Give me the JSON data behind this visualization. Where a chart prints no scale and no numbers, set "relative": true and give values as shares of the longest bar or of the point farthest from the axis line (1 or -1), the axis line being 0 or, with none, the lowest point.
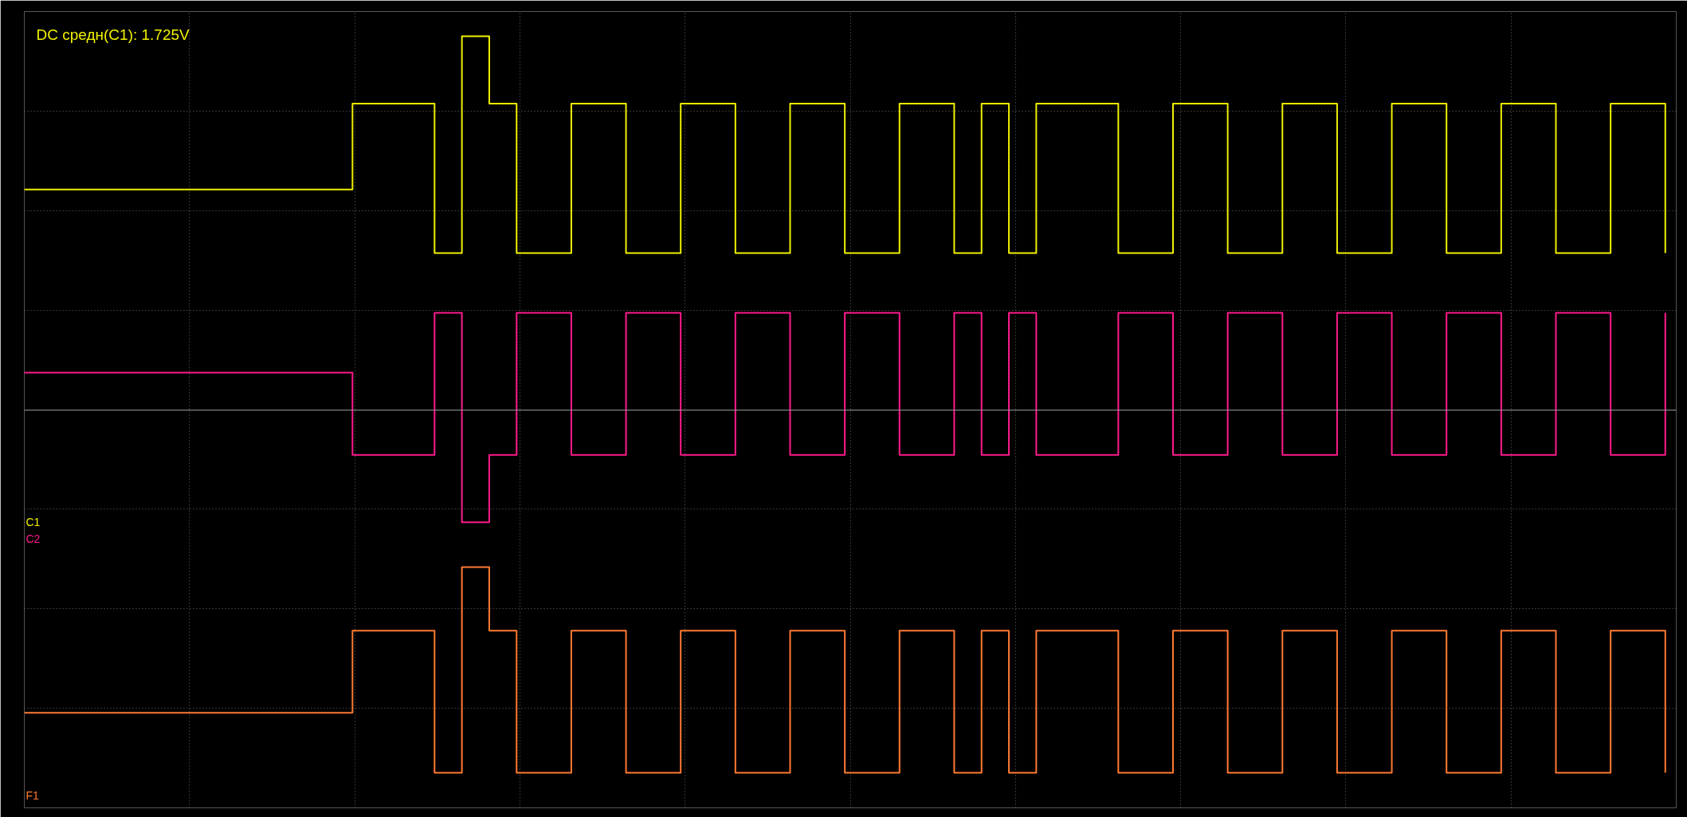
{
  "chart_data": {
    "type": "step",
    "relative": true,
    "grid": true,
    "line_style": "solid",
    "marker": "none",
    "categories": [
      null,
      null,
      null,
      null,
      null,
      null,
      null,
      null,
      null,
      null,
      null,
      null,
      null,
      null,
      null,
      null,
      null,
      null,
      null,
      null,
      null,
      null,
      null,
      null,
      null,
      null,
      null,
      null,
      null,
      null,
      null,
      null,
      null,
      null,
      null,
      null,
      null,
      null,
      null,
      null,
      null,
      null,
      null,
      null,
      null,
      null,
      null,
      null,
      null,
      null,
      null,
      null,
      null,
      null,
      null,
      null,
      null,
      null,
      null,
      null,
      null
    ],
    "annotations": [
      "DC средн(C1): 1.725V"
    ],
    "series": [
      {
        "name": "C1",
        "color": "#f0f000",
        "values": [
          0.59,
          0.59,
          0.59,
          0.59,
          0.59,
          0.59,
          0.59,
          0.59,
          0.59,
          0.59,
          0.59,
          0.59,
          0.82,
          0.82,
          0.82,
          0.42,
          1,
          0.82,
          0.42,
          0.42,
          0.82,
          0.82,
          0.42,
          0.42,
          0.82,
          0.82,
          0.42,
          0.42,
          0.82,
          0.82,
          0.42,
          0.42,
          0.82,
          0.82,
          0.42,
          0.82,
          0.42,
          0.82,
          0.82,
          0.82,
          0.42,
          0.42,
          0.82,
          0.82,
          0.42,
          0.42,
          0.82,
          0.82,
          0.42,
          0.42,
          0.82,
          0.82,
          0.42,
          0.42,
          0.82,
          0.82,
          0.42,
          0.42,
          0.82,
          0.82,
          0.42
        ]
      },
      {
        "name": "C2",
        "color": "#ff1a8c",
        "values": [
          0.1,
          0.1,
          0.1,
          0.1,
          0.1,
          0.1,
          0.1,
          0.1,
          0.1,
          0.1,
          0.1,
          0.1,
          -0.12,
          -0.12,
          -0.12,
          0.26,
          -0.3,
          -0.12,
          0.26,
          0.26,
          -0.12,
          -0.12,
          0.26,
          0.26,
          -0.12,
          -0.12,
          0.26,
          0.26,
          -0.12,
          -0.12,
          0.26,
          0.26,
          -0.12,
          -0.12,
          0.26,
          -0.12,
          0.26,
          -0.12,
          -0.12,
          -0.12,
          0.26,
          0.26,
          -0.12,
          -0.12,
          0.26,
          0.26,
          -0.12,
          -0.12,
          0.26,
          0.26,
          -0.12,
          -0.12,
          0.26,
          0.26,
          -0.12,
          -0.12,
          0.26,
          0.26,
          -0.12,
          -0.12,
          0.26
        ]
      },
      {
        "name": "F1",
        "color": "#ff7a33",
        "values": [
          -0.81,
          -0.81,
          -0.81,
          -0.81,
          -0.81,
          -0.81,
          -0.81,
          -0.81,
          -0.81,
          -0.81,
          -0.81,
          -0.81,
          -0.59,
          -0.59,
          -0.59,
          -0.97,
          -0.42,
          -0.59,
          -0.97,
          -0.97,
          -0.59,
          -0.59,
          -0.97,
          -0.97,
          -0.59,
          -0.59,
          -0.97,
          -0.97,
          -0.59,
          -0.59,
          -0.97,
          -0.97,
          -0.59,
          -0.59,
          -0.97,
          -0.59,
          -0.97,
          -0.59,
          -0.59,
          -0.59,
          -0.97,
          -0.97,
          -0.59,
          -0.59,
          -0.97,
          -0.97,
          -0.59,
          -0.59,
          -0.97,
          -0.97,
          -0.59,
          -0.59,
          -0.97,
          -0.97,
          -0.59,
          -0.59,
          -0.97,
          -0.97,
          -0.59,
          -0.59,
          -0.97
        ]
      }
    ]
  }
}
